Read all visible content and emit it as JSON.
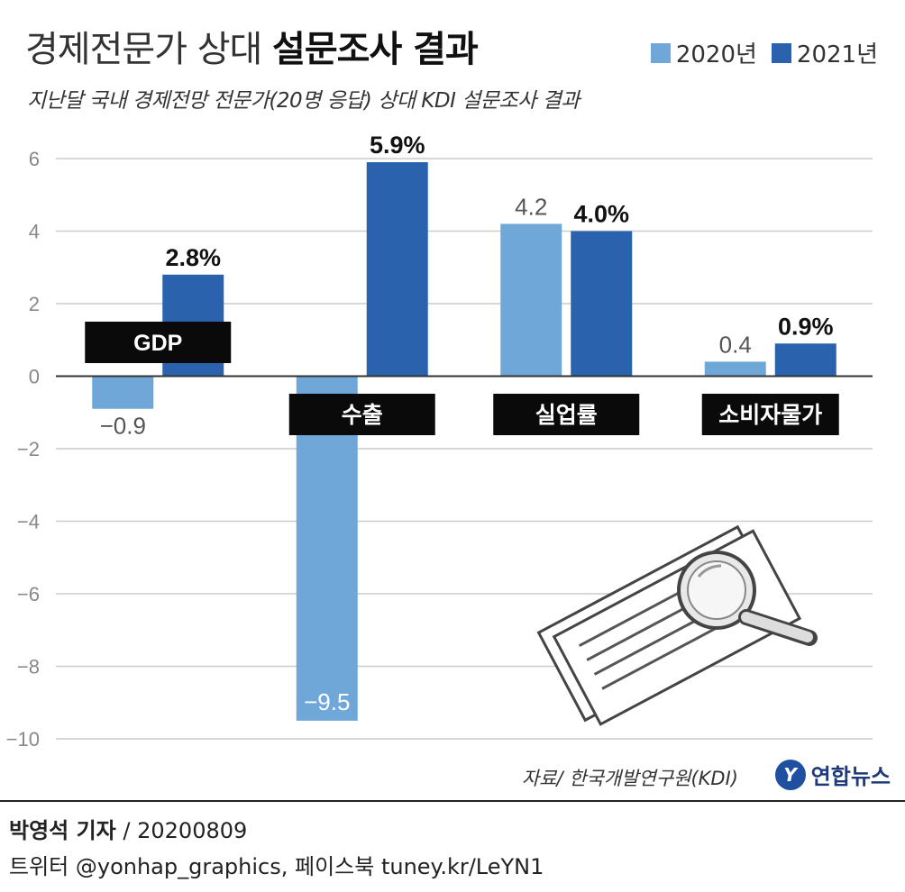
{
  "title": {
    "light": "경제전문가 상대",
    "bold": "설문조사 결과"
  },
  "subtitle": "지난달 국내 경제전망 전문가(20명 응답) 상대 KDI 설문조사 결과",
  "colors": {
    "y2020": "#6fa8d8",
    "y2021": "#2a62ad",
    "grid": "#cccccc",
    "axis": "#333333",
    "label_bg": "#0a0a0a"
  },
  "chart_data": {
    "type": "bar",
    "categories": [
      "GDP",
      "수출",
      "실업률",
      "소비자물가"
    ],
    "series": [
      {
        "name": "2020년",
        "values": [
          -0.9,
          -9.5,
          4.2,
          0.4
        ],
        "labels": [
          "−0.9",
          "−9.5",
          "4.2",
          "0.4"
        ]
      },
      {
        "name": "2021년",
        "values": [
          2.8,
          5.9,
          4.0,
          0.9
        ],
        "labels": [
          "2.8%",
          "5.9%",
          "4.0%",
          "0.9%"
        ]
      }
    ],
    "yticks": [
      "6",
      "4",
      "2",
      "0",
      "−2",
      "−4",
      "−6",
      "−8",
      "−10"
    ],
    "ytick_values": [
      6,
      4,
      2,
      0,
      -2,
      -4,
      -6,
      -8,
      -10
    ],
    "ylim": [
      -10,
      6
    ],
    "grid": true,
    "legend_position": "top-right"
  },
  "source": "자료/ 한국개발연구원(KDI)",
  "brand": "연합뉴스",
  "footer": {
    "reporter_name": "박영석 기자",
    "reporter_sep": " / ",
    "date": "20200809",
    "social": "트위터 @yonhap_graphics, 페이스북 tuney.kr/LeYN1"
  }
}
